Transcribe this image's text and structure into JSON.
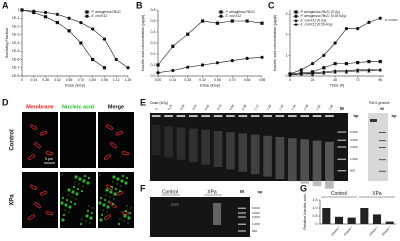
{
  "chart_data": [
    {
      "panel": "A",
      "type": "line",
      "xlabel": "Dose (kGy)",
      "ylabel": "Surviving Fraction",
      "yscale": "log",
      "x": [
        0,
        0.14,
        0.28,
        0.42,
        0.56,
        0.7,
        0.84,
        0.98,
        1.12,
        1.26
      ],
      "xlim": [
        0,
        1.26
      ],
      "xticks": [
        0,
        0.14,
        0.28,
        0.42,
        0.56,
        {
          "value": 0.7,
          "label": "0.70"
        },
        0.84,
        0.98,
        1.12,
        1.26
      ],
      "ylim": [
        1e-08,
        1
      ],
      "yticks": [
        1,
        {
          "value": 0.1,
          "label": "1E-1"
        },
        {
          "value": 0.01,
          "label": "1E-2"
        },
        {
          "value": 0.001,
          "label": "1E-3"
        },
        {
          "value": 0.0001,
          "label": "1E-4"
        },
        {
          "value": 1e-05,
          "label": "1E-5"
        },
        {
          "value": 1e-06,
          "label": "1E-6"
        },
        {
          "value": 1e-07,
          "label": "1E-7"
        },
        {
          "value": 1e-08,
          "label": "1E-8"
        }
      ],
      "legend": "upper right",
      "series": [
        {
          "name": "P. aeruginosa PAO1",
          "color": "#111111",
          "marker": "square",
          "values": [
            1,
            0.5,
            0.15,
            0.03,
            0.003,
            0.0001,
            1e-06,
            1e-07,
            null,
            null
          ]
        },
        {
          "name": "E. coli K12",
          "color": "#111111",
          "marker": "circle",
          "values": [
            1,
            0.7,
            0.5,
            0.3,
            0.1,
            0.03,
            0.005,
            0.0003,
            1e-06,
            1e-07
          ]
        }
      ]
    },
    {
      "panel": "B",
      "type": "line",
      "xlabel": "Dose (kGy)",
      "ylabel": "Nucleic acid concentration (μg/μl)",
      "x": [
        0,
        0.14,
        0.28,
        0.42,
        0.56,
        0.7,
        0.84,
        0.98
      ],
      "xlim": [
        0,
        0.98
      ],
      "xticks": [
        {
          "value": 0,
          "label": "0.00"
        },
        0.14,
        0.28,
        0.42,
        0.56,
        {
          "value": 0.7,
          "label": "0.70"
        },
        0.84,
        0.98
      ],
      "ylim": [
        0,
        0.6
      ],
      "yticks": [
        {
          "value": 0,
          "label": "0.0"
        },
        0.1,
        0.2,
        0.3,
        0.4,
        0.5,
        0.6
      ],
      "legend": "upper right",
      "series": [
        {
          "name": "P. aeruginosa PAO1",
          "color": "#111111",
          "marker": "square",
          "values": [
            0.1,
            0.27,
            0.38,
            0.5,
            0.48,
            0.5,
            0.5,
            0.48
          ]
        },
        {
          "name": "E. coli K12",
          "color": "#111111",
          "marker": "circle",
          "values": [
            0.03,
            0.05,
            0.08,
            0.1,
            0.12,
            0.14,
            0.16,
            0.17
          ]
        }
      ]
    },
    {
      "panel": "C",
      "type": "line",
      "xlabel": "Time (h)",
      "ylabel": "Nucleic acid concentration (μg/μl)",
      "x": [
        0,
        12,
        24,
        36,
        48,
        60,
        72,
        84,
        96
      ],
      "xlim": [
        0,
        100
      ],
      "xticks": [
        0,
        24,
        48,
        72,
        96
      ],
      "ylim": [
        0,
        3.2
      ],
      "yticks": [
        0,
        1,
        2,
        3
      ],
      "legend": "upper left",
      "annotation": "P<0.0001",
      "series": [
        {
          "name": "P. aeruginosa PAO1 (0 Gy)",
          "color": "#111111",
          "marker": "square",
          "values": [
            0.1,
            0.15,
            0.2,
            0.4,
            0.6,
            0.6,
            0.65,
            0.7,
            0.7
          ]
        },
        {
          "name": "P. aeruginosa PAO1 (0.56 kGy)",
          "color": "#111111",
          "marker": "circle",
          "values": [
            0.1,
            0.3,
            0.6,
            1.0,
            1.6,
            2.3,
            2.3,
            2.6,
            2.8
          ]
        },
        {
          "name": "E. coli K12 (0 Gy)",
          "color": "#111111",
          "marker": "triangle",
          "values": [
            0.05,
            0.1,
            0.1,
            0.15,
            0.2,
            0.2,
            0.25,
            0.25,
            0.3
          ]
        },
        {
          "name": "E. coli K12 (0.56 kGy)",
          "color": "#111111",
          "marker": "diamond",
          "values": [
            0.05,
            0.1,
            0.15,
            0.2,
            0.25,
            0.25,
            0.3,
            0.3,
            0.3
          ]
        }
      ]
    },
    {
      "panel": "G",
      "type": "bar",
      "ylabel": "Relative Nucleic acid",
      "categories": [
        "-",
        "DNase I",
        "RNase I",
        "-",
        "DNase I",
        "RNase I"
      ],
      "groups": [
        "Control",
        "XPa"
      ],
      "values": [
        1.0,
        0.45,
        0.4,
        1.0,
        0.6,
        0.15
      ],
      "color": "#222222",
      "ylim": [
        0,
        1.5
      ],
      "yticks": [
        0,
        0.5,
        {
          "value": 1,
          "label": "1.0"
        },
        1.5
      ]
    }
  ],
  "panel_d": {
    "letter": "D",
    "columns": [
      "Membrane",
      "Nucleic acid",
      "Merge"
    ],
    "rows": [
      "Control",
      "XPa"
    ],
    "scale_bar": "5 μm"
  },
  "panel_e": {
    "letter": "E",
    "dose_label": "Dose (kGy)",
    "lanes": [
      "0",
      "0.14",
      "0.28",
      "0.42",
      "0.56",
      "0.70",
      "0.84",
      "0.98",
      "1.12",
      "1.26",
      "1.40",
      "1.54",
      "1.68",
      "1.82",
      "1.96"
    ],
    "marker_lane": "M",
    "bp_label": "bp",
    "markers": [
      "5,000",
      "3,000",
      "2,000",
      "1,000",
      "500"
    ],
    "genome_label": "PAO1 genome",
    "genome_marker_lane": "M",
    "genome_bp_label": "bp"
  },
  "panel_f": {
    "letter": "F",
    "groups": [
      "Control",
      "XPa"
    ],
    "marker_lane": "M",
    "bp_label": "bp",
    "markers": [
      "5,000",
      "3,000",
      "2,000",
      "1,000",
      "500"
    ]
  }
}
